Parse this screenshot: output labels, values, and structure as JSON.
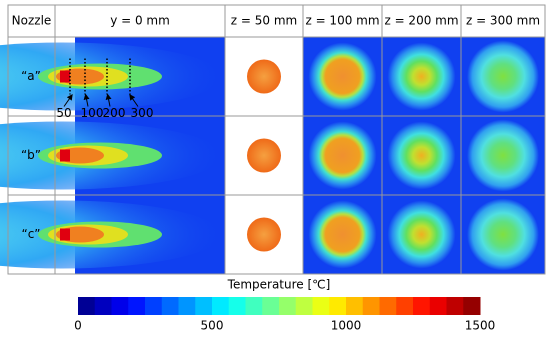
{
  "header": [
    "Nozzle",
    "y = 0 mm",
    "z = 50 mm",
    "z = 100 mm",
    "z = 200 mm",
    "z = 300 mm"
  ],
  "rows": [
    "“a”",
    "“b”",
    "“c”"
  ],
  "annotations": [
    "50",
    "100",
    "200",
    "300"
  ],
  "colorbar": {
    "title": "Temperature [℃]",
    "lim": [
      0,
      1500
    ],
    "ticks": [
      0,
      500,
      1000,
      1500
    ]
  }
}
